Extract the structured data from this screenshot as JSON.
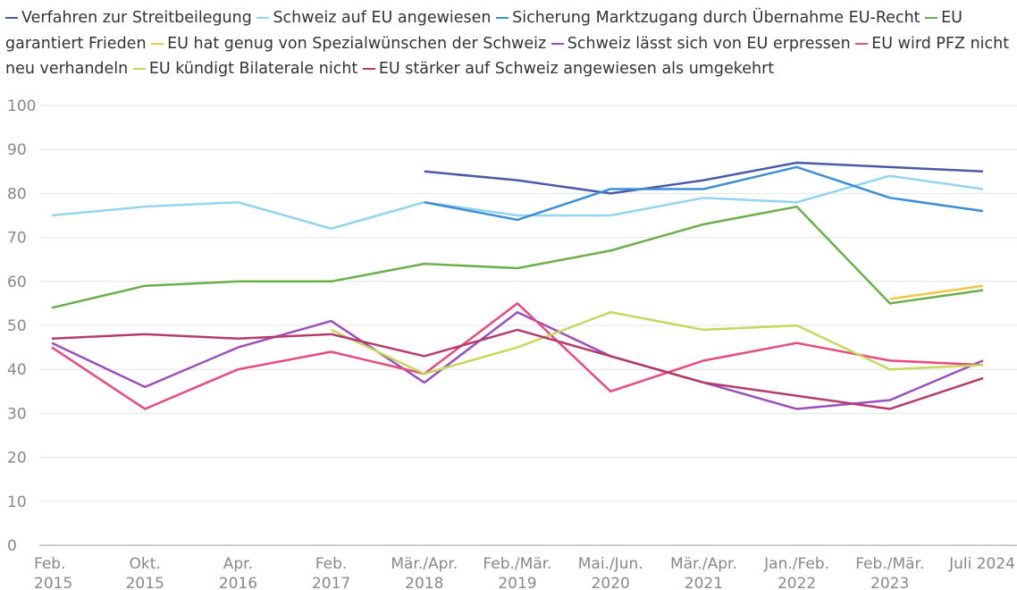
{
  "chart_data": {
    "type": "line",
    "categories": [
      [
        "Feb.",
        "2015"
      ],
      [
        "Okt.",
        "2015"
      ],
      [
        "Apr.",
        "2016"
      ],
      [
        "Feb.",
        "2017"
      ],
      [
        "Mär./Apr.",
        "2018"
      ],
      [
        "Feb./Mär.",
        "2019"
      ],
      [
        "Mai./Jun.",
        "2020"
      ],
      [
        "Mär./Apr.",
        "2021"
      ],
      [
        "Jan./Feb.",
        "2022"
      ],
      [
        "Feb./Mär.",
        "2023"
      ],
      [
        "Juli 2024"
      ]
    ],
    "series": [
      {
        "name": "Verfahren zur Streitbeilegung",
        "color": "#4b5aa6",
        "values": [
          null,
          null,
          null,
          null,
          85,
          83,
          80,
          83,
          87,
          86,
          85
        ]
      },
      {
        "name": "Schweiz auf EU angewiesen",
        "color": "#93d4f0",
        "values": [
          75,
          77,
          78,
          72,
          78,
          75,
          75,
          79,
          78,
          84,
          81
        ]
      },
      {
        "name": "Sicherung Marktzugang durch Übernahme EU-Recht",
        "color": "#3b8fd6",
        "values": [
          null,
          null,
          null,
          null,
          78,
          74,
          81,
          81,
          86,
          79,
          76
        ]
      },
      {
        "name": "EU garantiert Frieden",
        "color": "#6aaf4c",
        "values": [
          54,
          59,
          60,
          60,
          64,
          63,
          67,
          73,
          77,
          55,
          58
        ]
      },
      {
        "name": "EU hat genug von Spezialwünschen der Schweiz",
        "color": "#f4c444",
        "values": [
          null,
          null,
          null,
          null,
          null,
          null,
          null,
          null,
          null,
          56,
          59
        ]
      },
      {
        "name": "Schweiz lässt sich von EU erpressen",
        "color": "#9a4fbf",
        "values": [
          46,
          36,
          45,
          51,
          37,
          53,
          43,
          37,
          31,
          33,
          42
        ]
      },
      {
        "name": "EU wird PFZ nicht neu verhandeln",
        "color": "#e8497e",
        "values": [
          45,
          31,
          40,
          44,
          39,
          55,
          35,
          42,
          46,
          42,
          41
        ]
      },
      {
        "name": "EU kündigt Bilaterale nicht",
        "color": "#c6d85b",
        "values": [
          null,
          null,
          null,
          49,
          39,
          45,
          53,
          49,
          50,
          40,
          41
        ]
      },
      {
        "name": "EU stärker auf Schweiz angewiesen als umgekehrt",
        "color": "#b63b6d",
        "values": [
          47,
          48,
          47,
          48,
          43,
          49,
          43,
          37,
          34,
          31,
          38
        ]
      }
    ],
    "ylim": [
      0,
      100
    ],
    "yticks": [
      0,
      10,
      20,
      30,
      40,
      50,
      60,
      70,
      80,
      90,
      100
    ],
    "grid": true
  }
}
